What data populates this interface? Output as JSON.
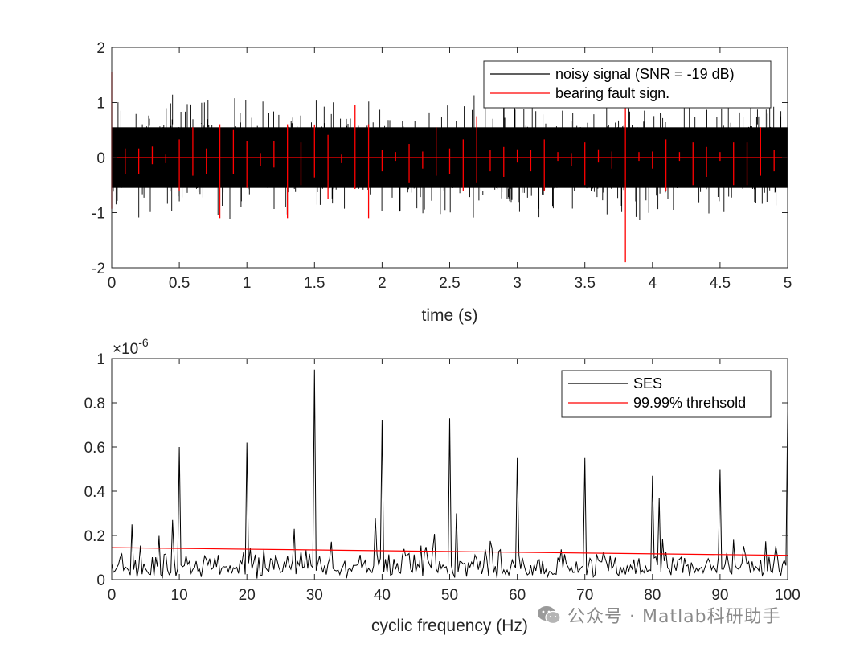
{
  "chart_data": [
    {
      "type": "line",
      "xlabel": "time (s)",
      "ylabel": "",
      "xlim": [
        0,
        5
      ],
      "ylim": [
        -2,
        2
      ],
      "xticks": [
        "0",
        "0.5",
        "1",
        "1.5",
        "2",
        "2.5",
        "3",
        "3.5",
        "4",
        "4.5",
        "5"
      ],
      "yticks": [
        "-2",
        "-1",
        "0",
        "1",
        "2"
      ],
      "grid": false,
      "legend_position": "top-right",
      "series": [
        {
          "name": "noisy signal (SNR = -19 dB)",
          "color": "#000000",
          "description_values": {
            "typical_amplitude": [
              -0.6,
              0.6
            ],
            "min": -1.47,
            "max": 1.75
          }
        },
        {
          "name": "bearing fault sign.",
          "color": "#ff0000",
          "impulse_times": [
            0,
            0.1,
            0.2,
            0.3,
            0.4,
            0.5,
            0.6,
            0.7,
            0.8,
            0.9,
            1.0,
            1.1,
            1.2,
            1.3,
            1.4,
            1.5,
            1.6,
            1.7,
            1.8,
            1.9,
            2.0,
            2.1,
            2.2,
            2.3,
            2.4,
            2.5,
            2.6,
            2.7,
            2.8,
            2.9,
            3.0,
            3.1,
            3.2,
            3.3,
            3.4,
            3.5,
            3.6,
            3.7,
            3.8,
            3.9,
            4.0,
            4.1,
            4.2,
            4.3,
            4.4,
            4.5,
            4.6,
            4.7,
            4.8,
            4.9
          ],
          "impulse_amplitudes": [
            1.55,
            0.3,
            0.3,
            0.2,
            0.1,
            0.6,
            0.55,
            0.3,
            1.1,
            0.5,
            0.55,
            0.15,
            0.3,
            1.1,
            0.5,
            0.6,
            0.75,
            0.1,
            0.95,
            1.1,
            0.25,
            0.1,
            0.45,
            0.2,
            0.55,
            0.3,
            0.6,
            0.75,
            0.25,
            0.35,
            0.15,
            0.25,
            0.6,
            0.1,
            0.15,
            0.5,
            0.15,
            0.2,
            1.9,
            0.1,
            0.2,
            0.6,
            0.1,
            0.5,
            0.35,
            0.1,
            0.5,
            0.5,
            0.55,
            0.25
          ]
        }
      ]
    },
    {
      "type": "line",
      "xlabel": "cyclic frequency (Hz)",
      "ylabel": "",
      "xlim": [
        0,
        100
      ],
      "ylim": [
        0,
        1
      ],
      "y_multiplier": "×10",
      "y_multiplier_exponent": "-6",
      "xticks": [
        "0",
        "10",
        "20",
        "30",
        "40",
        "50",
        "60",
        "70",
        "80",
        "90",
        "100"
      ],
      "yticks": [
        "0",
        "0.2",
        "0.4",
        "0.6",
        "0.8",
        "1"
      ],
      "grid": false,
      "legend_position": "top-right",
      "series": [
        {
          "name": "SES",
          "color": "#000000",
          "peaks_x": [
            3,
            9,
            10,
            20,
            27,
            30,
            39,
            40,
            50,
            51,
            60,
            70,
            80,
            81,
            90,
            100
          ],
          "peaks_y": [
            0.25,
            0.27,
            0.6,
            0.62,
            0.23,
            0.95,
            0.28,
            0.72,
            0.73,
            0.3,
            0.55,
            0.55,
            0.47,
            0.37,
            0.5,
            0.76
          ],
          "baseline_range": [
            0.0,
            0.18
          ]
        },
        {
          "name": "99.99% threhsold",
          "color": "#ff0000",
          "x": [
            0,
            100
          ],
          "y": [
            0.145,
            0.11
          ]
        }
      ]
    }
  ],
  "watermark": {
    "text": "公众号 · Matlab科研助手",
    "icon": "wechat-icon"
  }
}
